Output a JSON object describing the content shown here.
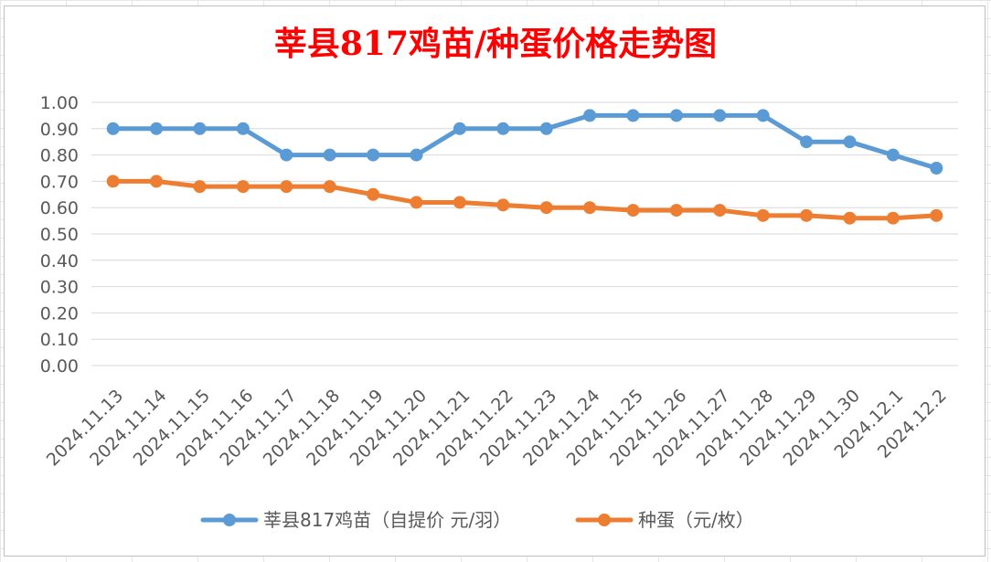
{
  "chart_data": {
    "type": "line",
    "title": "莘县817鸡苗/种蛋价格走势图",
    "xlabel": "",
    "ylabel": "",
    "ylim": [
      0,
      1.0
    ],
    "y_ticks": [
      "0.00",
      "0.10",
      "0.20",
      "0.30",
      "0.40",
      "0.50",
      "0.60",
      "0.70",
      "0.80",
      "0.90",
      "1.00"
    ],
    "grid": true,
    "legend_position": "bottom",
    "categories": [
      "2024.11.13",
      "2024.11.14",
      "2024.11.15",
      "2024.11.16",
      "2024.11.17",
      "2024.11.18",
      "2024.11.19",
      "2024.11.20",
      "2024.11.21",
      "2024.11.22",
      "2024.11.23",
      "2024.11.24",
      "2024.11.25",
      "2024.11.26",
      "2024.11.27",
      "2024.11.28",
      "2024.11.29",
      "2024.11.30",
      "2024.12.1",
      "2024.12.2"
    ],
    "series": [
      {
        "name": "莘县817鸡苗（自提价 元/羽）",
        "color": "#5b9bd5",
        "values": [
          0.9,
          0.9,
          0.9,
          0.9,
          0.8,
          0.8,
          0.8,
          0.8,
          0.9,
          0.9,
          0.9,
          0.95,
          0.95,
          0.95,
          0.95,
          0.95,
          0.85,
          0.85,
          0.8,
          0.75
        ]
      },
      {
        "name": "种蛋（元/枚）",
        "color": "#ed7d31",
        "values": [
          0.7,
          0.7,
          0.68,
          0.68,
          0.68,
          0.68,
          0.65,
          0.62,
          0.62,
          0.61,
          0.6,
          0.6,
          0.59,
          0.59,
          0.59,
          0.57,
          0.57,
          0.56,
          0.56,
          0.57
        ]
      }
    ]
  }
}
